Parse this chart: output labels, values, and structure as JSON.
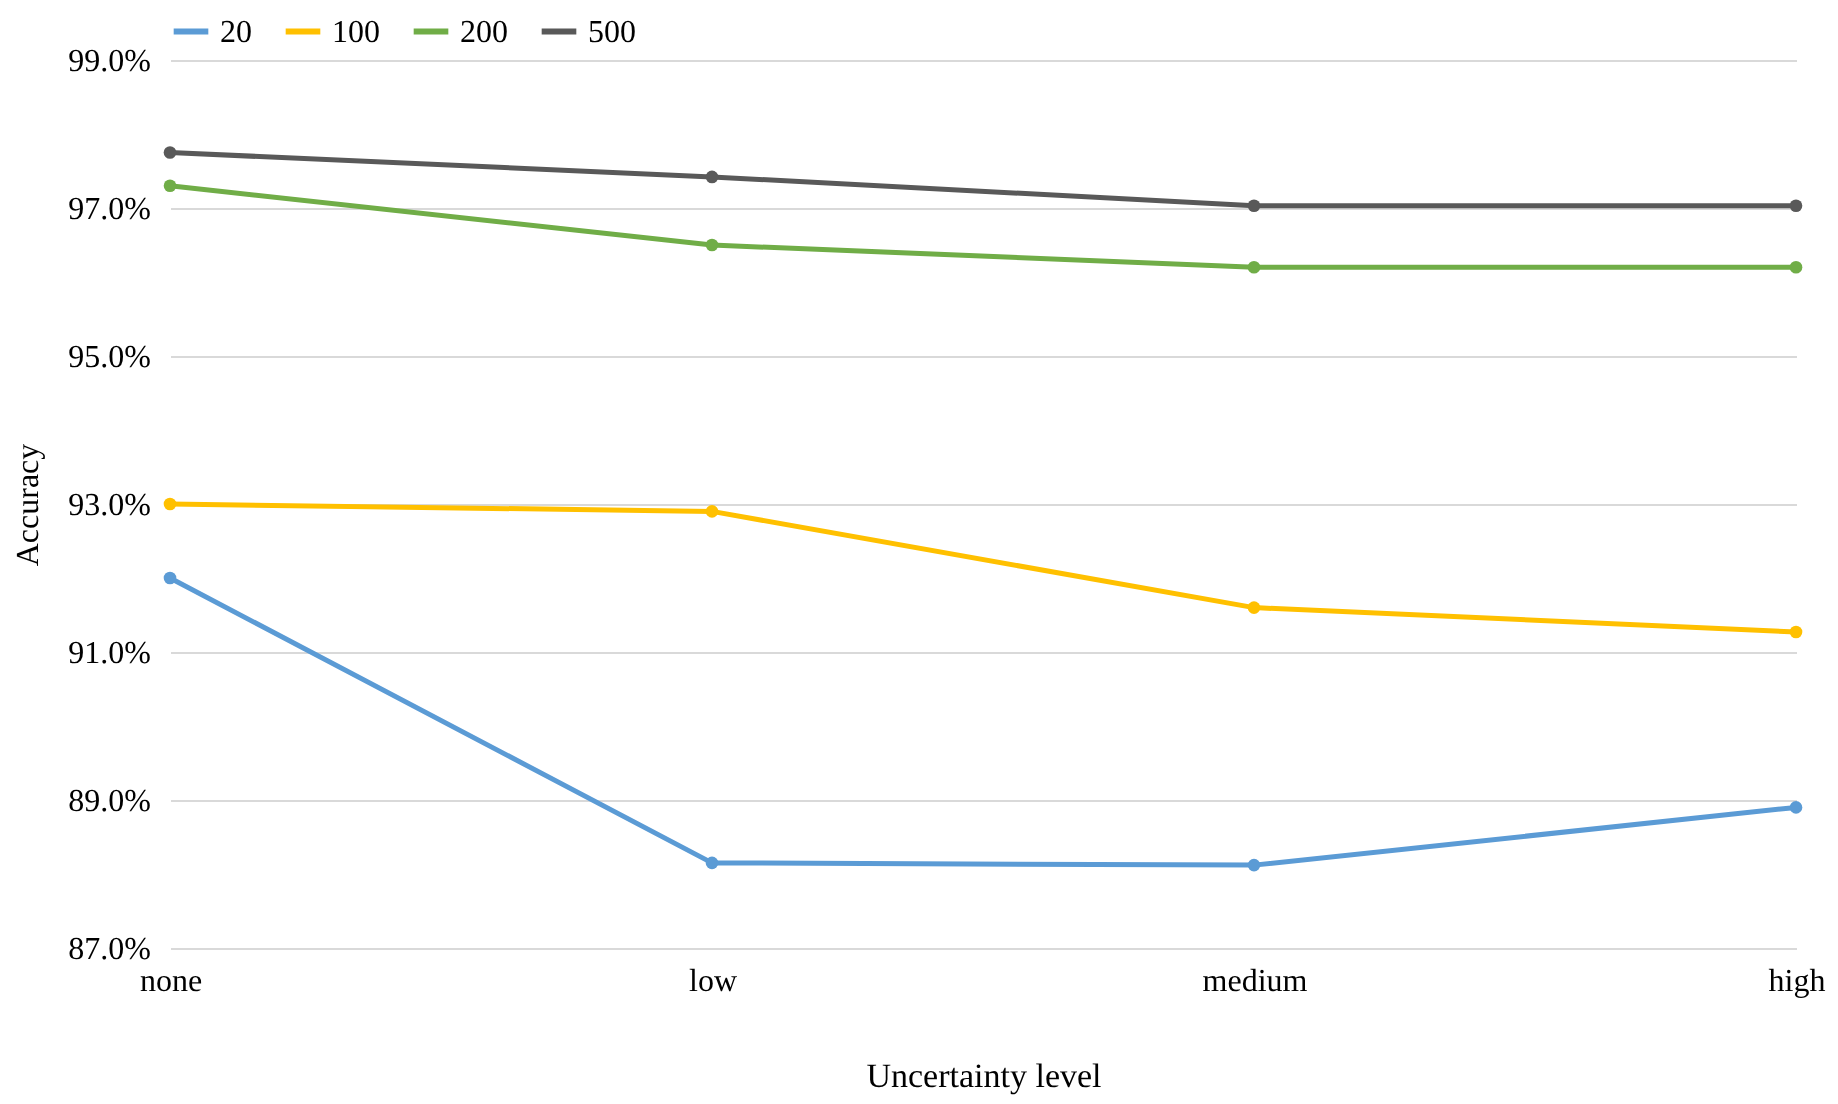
{
  "chart_data": {
    "type": "line",
    "xlabel": "Uncertainty level",
    "ylabel": "Accuracy",
    "categories": [
      "none",
      "low",
      "medium",
      "high"
    ],
    "series": [
      {
        "name": "20",
        "color": "#5b9bd5",
        "values": [
          92.0,
          88.15,
          88.12,
          88.9
        ]
      },
      {
        "name": "100",
        "color": "#ffc000",
        "values": [
          93.0,
          92.9,
          91.6,
          91.27
        ]
      },
      {
        "name": "200",
        "color": "#70ad47",
        "values": [
          97.3,
          96.5,
          96.2,
          96.2
        ]
      },
      {
        "name": "500",
        "color": "#595959",
        "values": [
          97.75,
          97.42,
          97.03,
          97.03
        ]
      }
    ],
    "ylim": [
      87,
      99
    ],
    "yticks": [
      {
        "value": 87,
        "label": "87.0%"
      },
      {
        "value": 89,
        "label": "89.0%"
      },
      {
        "value": 91,
        "label": "91.0%"
      },
      {
        "value": 93,
        "label": "93.0%"
      },
      {
        "value": 95,
        "label": "95.0%"
      },
      {
        "value": 97,
        "label": "97.0%"
      },
      {
        "value": 99,
        "label": "99.0%"
      }
    ],
    "grid": "y",
    "legend": "top",
    "marker": "circle",
    "line_style": "solid"
  }
}
